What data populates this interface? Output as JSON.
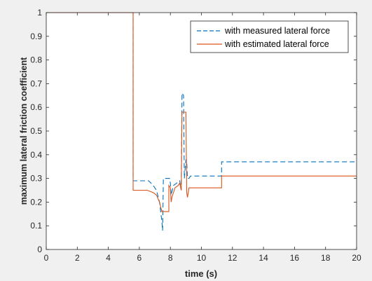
{
  "chart_data": {
    "type": "line",
    "title": "",
    "xlabel": "time (s)",
    "ylabel": "maximum lateral friction coefficient",
    "xlim": [
      0,
      20
    ],
    "ylim": [
      0,
      1
    ],
    "x_ticks": [
      0,
      2,
      4,
      6,
      8,
      10,
      12,
      14,
      16,
      18,
      20
    ],
    "x_tick_labels": [
      "0",
      "2",
      "4",
      "6",
      "8",
      "10",
      "12",
      "14",
      "16",
      "18",
      "20"
    ],
    "y_ticks": [
      0,
      0.1,
      0.2,
      0.3,
      0.4,
      0.5,
      0.6,
      0.7,
      0.8,
      0.9,
      1
    ],
    "y_tick_labels": [
      "0",
      "0.1",
      "0.2",
      "0.3",
      "0.4",
      "0.5",
      "0.6",
      "0.7",
      "0.8",
      "0.9",
      "1"
    ],
    "grid": false,
    "legend_position": "top-right",
    "series": [
      {
        "name": "with measured lateral force",
        "color": "#0072BD",
        "line_style": "dashed",
        "x": [
          0,
          5.6,
          5.6,
          6.0,
          6.6,
          6.9,
          7.1,
          7.3,
          7.45,
          7.5,
          7.55,
          7.65,
          7.8,
          7.95,
          8.0,
          8.05,
          8.2,
          8.4,
          8.6,
          8.7,
          8.75,
          8.85,
          8.9,
          9.0,
          9.05,
          9.1,
          9.2,
          9.3,
          9.5,
          10.0,
          11.3,
          11.3,
          20
        ],
        "y": [
          1,
          1,
          0.29,
          0.29,
          0.29,
          0.27,
          0.25,
          0.2,
          0.12,
          0.08,
          0.3,
          0.3,
          0.3,
          0.3,
          0.28,
          0.23,
          0.27,
          0.28,
          0.29,
          0.25,
          0.66,
          0.65,
          0.3,
          0.38,
          0.37,
          0.3,
          0.3,
          0.31,
          0.31,
          0.31,
          0.31,
          0.37,
          0.37
        ]
      },
      {
        "name": "with estimated lateral force",
        "color": "#D95319",
        "line_style": "solid",
        "x": [
          0,
          5.6,
          5.6,
          6.0,
          6.5,
          6.9,
          7.1,
          7.3,
          7.45,
          7.5,
          7.6,
          7.9,
          7.9,
          8.0,
          8.05,
          8.1,
          8.3,
          8.5,
          8.6,
          8.7,
          8.75,
          8.8,
          9.0,
          9.05,
          9.1,
          9.2,
          9.4,
          9.6,
          10.5,
          11.3,
          11.3,
          20
        ],
        "y": [
          1,
          1,
          0.25,
          0.25,
          0.25,
          0.24,
          0.23,
          0.2,
          0.16,
          0.16,
          0.16,
          0.16,
          0.27,
          0.26,
          0.2,
          0.22,
          0.26,
          0.27,
          0.28,
          0.25,
          0.58,
          0.58,
          0.58,
          0.24,
          0.22,
          0.26,
          0.26,
          0.26,
          0.26,
          0.26,
          0.31,
          0.31
        ]
      }
    ]
  }
}
